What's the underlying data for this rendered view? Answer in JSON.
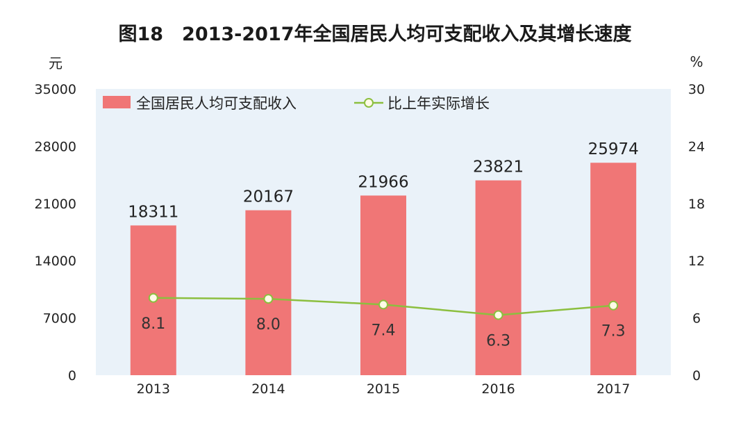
{
  "chart_data": {
    "type": "bar",
    "title": "图18　2013-2017年全国居民人均可支配收入及其增长速度",
    "categories": [
      "2013",
      "2014",
      "2015",
      "2016",
      "2017"
    ],
    "series": [
      {
        "name": "全国居民人均可支配收入",
        "type": "bar",
        "axis": "left",
        "color": "#f07676",
        "values": [
          18311,
          20167,
          21966,
          23821,
          25974
        ],
        "labels": [
          "18311",
          "20167",
          "21966",
          "23821",
          "25974"
        ]
      },
      {
        "name": "比上年实际增长",
        "type": "line",
        "axis": "right",
        "color": "#8cbf3f",
        "values": [
          8.1,
          8.0,
          7.4,
          6.3,
          7.3
        ],
        "labels": [
          "8.1",
          "8.0",
          "7.4",
          "6.3",
          "7.3"
        ]
      }
    ],
    "left_axis": {
      "unit": "元",
      "ylim": [
        0,
        35000
      ],
      "ticks": [
        0,
        7000,
        14000,
        21000,
        28000,
        35000
      ],
      "tick_labels": [
        "0",
        "7000",
        "14000",
        "21000",
        "28000",
        "35000"
      ]
    },
    "right_axis": {
      "unit": "%",
      "ylim": [
        0,
        30
      ],
      "ticks": [
        0,
        6,
        12,
        18,
        24,
        30
      ],
      "tick_labels": [
        "0",
        "6",
        "12",
        "18",
        "24",
        "30"
      ]
    },
    "grid": false,
    "legend_position": "top-left",
    "plot_background": "#eaf2f9"
  }
}
